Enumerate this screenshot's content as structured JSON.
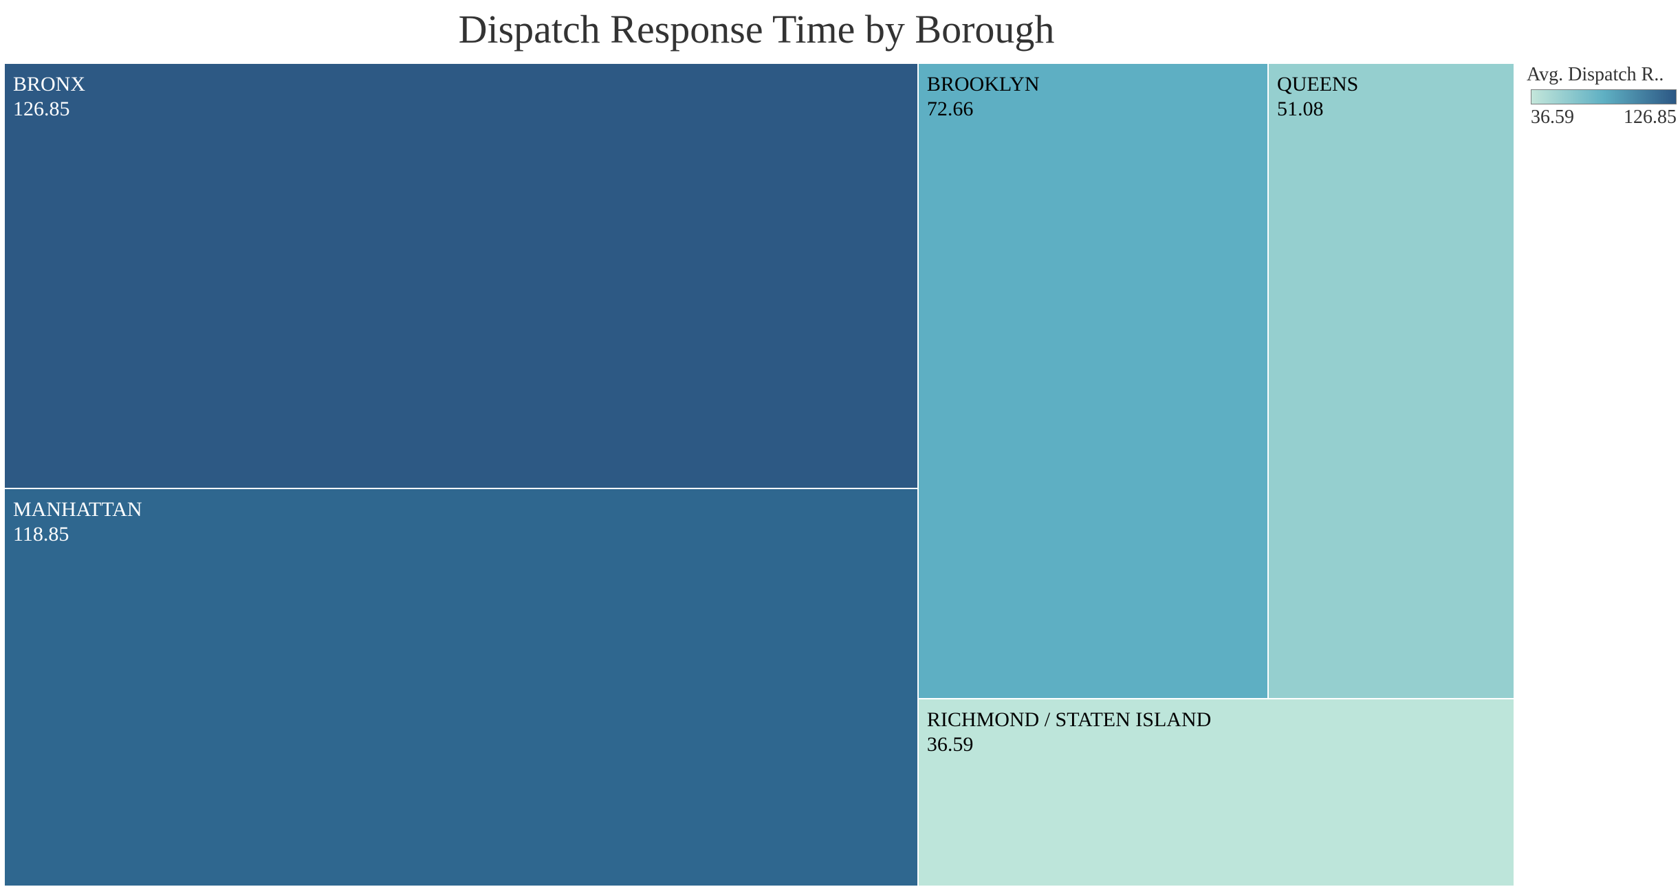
{
  "chart_data": {
    "type": "treemap",
    "title": "Dispatch Response Time by Borough",
    "legend": {
      "title": "Avg. Dispatch R..",
      "min_label": "36.59",
      "max_label": "126.85",
      "min": 36.59,
      "max": 126.85,
      "colors": [
        "#c4e6da",
        "#5fb0c3",
        "#2c5784"
      ],
      "placement": "top-right"
    },
    "items": [
      {
        "label": "BRONX",
        "value": 126.85,
        "value_label": "126.85",
        "color": "#2d5984",
        "text_color": "#ffffff"
      },
      {
        "label": "MANHATTAN",
        "value": 118.85,
        "value_label": "118.85",
        "color": "#2f678f",
        "text_color": "#ffffff"
      },
      {
        "label": "BROOKLYN",
        "value": 72.66,
        "value_label": "72.66",
        "color": "#5eafc3",
        "text_color": "#000000"
      },
      {
        "label": "QUEENS",
        "value": 51.08,
        "value_label": "51.08",
        "color": "#95cfcf",
        "text_color": "#000000"
      },
      {
        "label": "RICHMOND / STATEN ISLAND",
        "value": 36.59,
        "value_label": "36.59",
        "color": "#bde5da",
        "text_color": "#000000"
      }
    ]
  }
}
